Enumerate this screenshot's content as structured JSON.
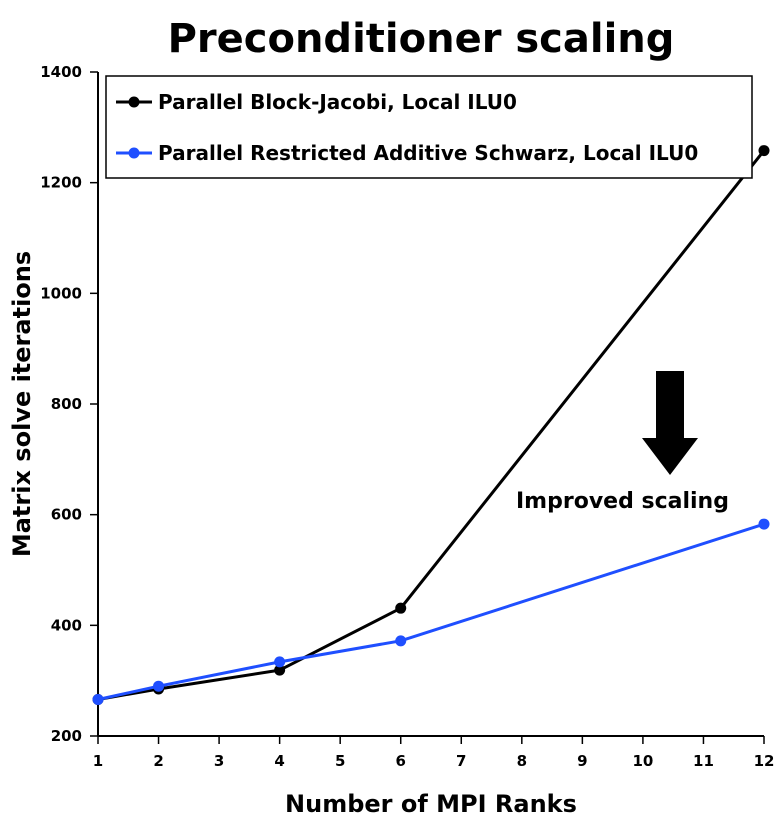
{
  "chart_data": {
    "type": "line",
    "title": "Preconditioner scaling",
    "xlabel": "Number of MPI Ranks",
    "ylabel": "Matrix solve iterations",
    "categories": [
      "1",
      "2",
      "4",
      "6",
      "12"
    ],
    "x_tick_labels": [
      "1",
      "2",
      "3",
      "4",
      "5",
      "6",
      "7",
      "8",
      "9",
      "10",
      "11",
      "12"
    ],
    "y_tick_labels": [
      "200",
      "400",
      "600",
      "800",
      "1000",
      "1200",
      "1400"
    ],
    "ylim": [
      200,
      1400
    ],
    "grid": false,
    "legend_position": "top",
    "series": [
      {
        "name": "Parallel Block-Jacobi, Local ILU0",
        "color": "#000000",
        "values": [
          266,
          285,
          319,
          431,
          1258
        ]
      },
      {
        "name": "Parallel Restricted Additive Schwarz, Local ILU0",
        "color": "#1f4fff",
        "values": [
          266,
          290,
          334,
          372,
          583
        ]
      }
    ],
    "annotation": {
      "text": "Improved scaling",
      "arrow": "down-arrow"
    }
  }
}
